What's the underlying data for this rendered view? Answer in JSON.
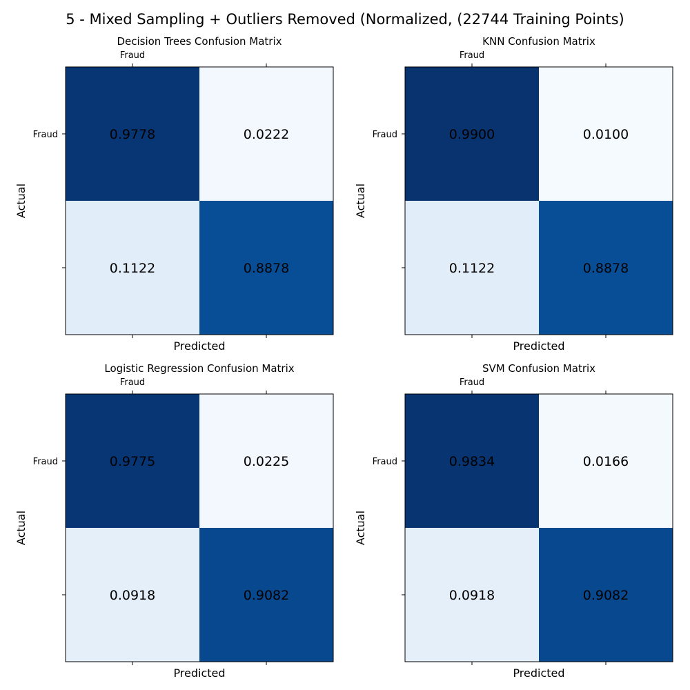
{
  "suptitle": "5 - Mixed Sampling + Outliers Removed (Normalized, (22744 Training Points)",
  "chart_data": [
    {
      "type": "heatmap",
      "title": "Decision Trees Confusion Matrix",
      "xlabel": "Predicted",
      "ylabel": "Actual",
      "x_ticklabels": [
        "Fraud",
        ""
      ],
      "y_ticklabels": [
        "Fraud",
        ""
      ],
      "values": [
        [
          0.9778,
          0.0222
        ],
        [
          0.1122,
          0.8878
        ]
      ],
      "colormap": "Blues",
      "value_range": [
        0,
        1
      ]
    },
    {
      "type": "heatmap",
      "title": "KNN Confusion Matrix",
      "xlabel": "Predicted",
      "ylabel": "Actual",
      "x_ticklabels": [
        "Fraud",
        ""
      ],
      "y_ticklabels": [
        "Fraud",
        ""
      ],
      "values": [
        [
          0.99,
          0.01
        ],
        [
          0.1122,
          0.8878
        ]
      ],
      "colormap": "Blues",
      "value_range": [
        0,
        1
      ]
    },
    {
      "type": "heatmap",
      "title": "Logistic Regression Confusion Matrix",
      "xlabel": "Predicted",
      "ylabel": "Actual",
      "x_ticklabels": [
        "Fraud",
        ""
      ],
      "y_ticklabels": [
        "Fraud",
        ""
      ],
      "values": [
        [
          0.9775,
          0.0225
        ],
        [
          0.0918,
          0.9082
        ]
      ],
      "colormap": "Blues",
      "value_range": [
        0,
        1
      ]
    },
    {
      "type": "heatmap",
      "title": "SVM Confusion Matrix",
      "xlabel": "Predicted",
      "ylabel": "Actual",
      "x_ticklabels": [
        "Fraud",
        ""
      ],
      "y_ticklabels": [
        "Fraud",
        ""
      ],
      "values": [
        [
          0.9834,
          0.0166
        ],
        [
          0.0918,
          0.9082
        ]
      ],
      "colormap": "Blues",
      "value_range": [
        0,
        1
      ]
    }
  ]
}
